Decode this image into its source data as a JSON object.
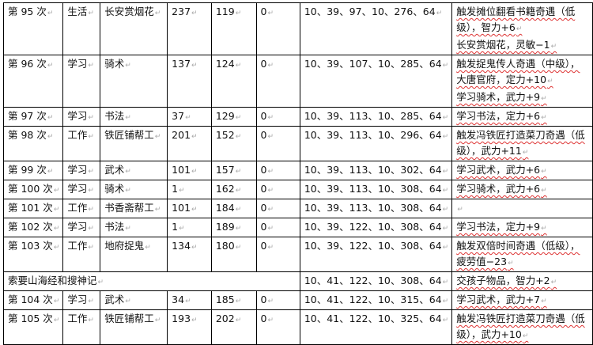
{
  "rows": [
    {
      "round": "第 95 次",
      "type": "生活",
      "activity": "长安赏烟花",
      "c4": "237",
      "c5": "119",
      "c6": "0",
      "stats": "10、39、97、10、276、64",
      "remarks": [
        "触发摊位翻看书籍奇遇（低级），智力+6",
        "长安赏烟花，灵敏−1"
      ]
    },
    {
      "round": "第 96 次",
      "type": "学习",
      "activity": "骑术",
      "c4": "137",
      "c5": "124",
      "c6": "0",
      "stats": "10、39、107、10、285、64",
      "remarks": [
        "触发捉鬼传人奇遇（中级），大唐官府，定力+10",
        "学习骑术，武力+9"
      ]
    },
    {
      "round": "第 97 次",
      "type": "学习",
      "activity": "书法",
      "c4": "37",
      "c5": "129",
      "c6": "0",
      "stats": "10、39、113、10、285、64",
      "remarks": [
        "学习书法，定力+6"
      ]
    },
    {
      "round": "第 98 次",
      "type": "工作",
      "activity": "铁匠铺帮工",
      "c4": "201",
      "c5": "152",
      "c6": "0",
      "stats": "10、39、113、10、296、64",
      "remarks": [
        "触发冯铁匠打造菜刀奇遇（低级），武力+11"
      ]
    },
    {
      "round": "第 99 次",
      "type": "学习",
      "activity": "武术",
      "c4": "101",
      "c5": "157",
      "c6": "0",
      "stats": "10、39、113、10、302、64",
      "remarks": [
        "学习武术，武力+6"
      ]
    },
    {
      "round": "第 100 次",
      "type": "学习",
      "activity": "骑术",
      "c4": "1",
      "c5": "162",
      "c6": "0",
      "stats": "10、39、113、10、308、64",
      "remarks": [
        "学习骑术，武力+6"
      ]
    },
    {
      "round": "第 101 次",
      "type": "工作",
      "activity": "书香斋帮工",
      "c4": "101",
      "c5": "184",
      "c6": "0",
      "stats": "10、39、113、10、308、64",
      "remarks": [
        ""
      ]
    },
    {
      "round": "第 102 次",
      "type": "学习",
      "activity": "书法",
      "c4": "1",
      "c5": "189",
      "c6": "0",
      "stats": "10、39、122、10、308、64",
      "remarks": [
        "学习书法，定力+9"
      ]
    },
    {
      "round": "第 103 次",
      "type": "工作",
      "activity": "地府捉鬼",
      "c4": "134",
      "c5": "180",
      "c6": "0",
      "stats": "10、39、122、10、308、64",
      "remarks": [
        "触发双倍时间奇遇（低级），疲劳值−23"
      ]
    },
    {
      "merged": "索要山海经和搜神记",
      "stats": "10、41、122、10、308、64",
      "remarks": [
        "交孩子物品，智力+2"
      ]
    },
    {
      "round": "第 104 次",
      "type": "学习",
      "activity": "武术",
      "c4": "34",
      "c5": "185",
      "c6": "0",
      "stats": "10、41、122、10、315、64",
      "remarks": [
        "学习武术，武力+7"
      ]
    },
    {
      "round": "第 105 次",
      "type": "工作",
      "activity": "铁匠铺帮工",
      "c4": "193",
      "c5": "202",
      "c6": "0",
      "stats": "10、41、122、10、325、64",
      "remarks": [
        "触发冯铁匠打造菜刀奇遇（低级），武力+10"
      ]
    }
  ]
}
